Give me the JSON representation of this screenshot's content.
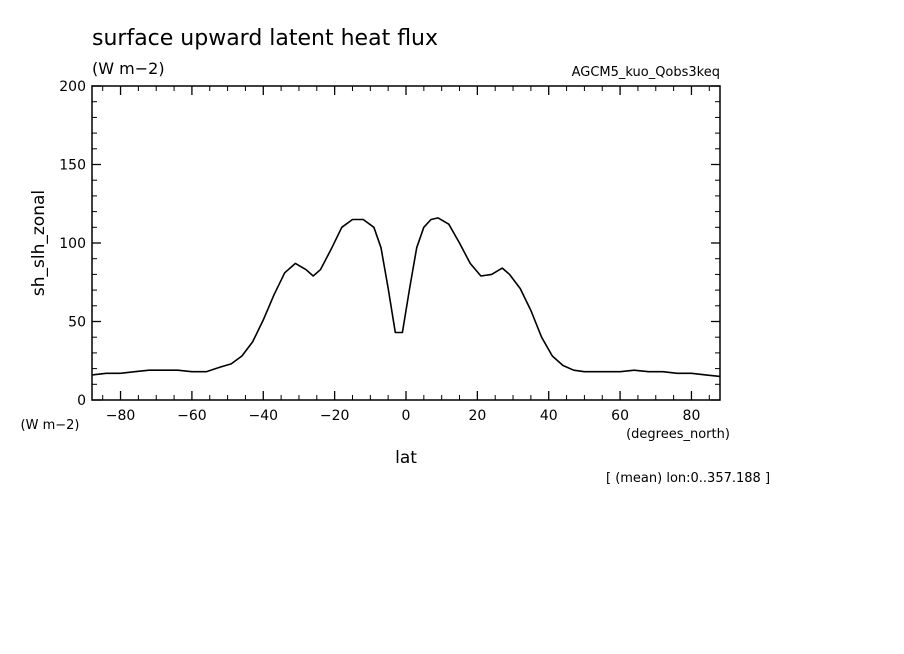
{
  "chart_data": {
    "type": "line",
    "title": "surface upward latent heat flux",
    "units": "(W m−2)",
    "experiment": "AGCM5_kuo_Qobs3keq",
    "ylabel": "sh_slh_zonal",
    "yunits": "(W m−2)",
    "xlabel": "lat",
    "xunits": "(degrees_north)",
    "footnote": "[ (mean) lon:0..357.188 ]",
    "xlim": [
      -88,
      88
    ],
    "ylim": [
      0,
      200
    ],
    "xticks": [
      -80,
      -60,
      -40,
      -20,
      0,
      20,
      40,
      60,
      80
    ],
    "xtick_labels": [
      "−80",
      "−60",
      "−40",
      "−20",
      "0",
      "20",
      "40",
      "60",
      "80"
    ],
    "yticks": [
      0,
      50,
      100,
      150,
      200
    ],
    "ytick_labels": [
      "0",
      "50",
      "100",
      "150",
      "200"
    ],
    "line_color": "#000000",
    "x": [
      -88,
      -84,
      -80,
      -76,
      -72,
      -68,
      -64,
      -60,
      -56,
      -52,
      -49,
      -46,
      -43,
      -40,
      -37,
      -34,
      -31,
      -28,
      -26,
      -24,
      -21,
      -18,
      -15,
      -12,
      -9,
      -7,
      -5,
      -3,
      -1,
      1,
      3,
      5,
      7,
      9,
      12,
      15,
      18,
      21,
      24,
      27,
      29,
      32,
      35,
      38,
      41,
      44,
      47,
      50,
      53,
      56,
      60,
      64,
      68,
      72,
      76,
      80,
      84,
      88
    ],
    "y": [
      16,
      17,
      17,
      18,
      19,
      19,
      19,
      18,
      18,
      21,
      23,
      28,
      37,
      51,
      67,
      81,
      87,
      83,
      79,
      83,
      96,
      110,
      115,
      115,
      110,
      97,
      71,
      43,
      43,
      71,
      97,
      110,
      115,
      116,
      112,
      100,
      87,
      79,
      80,
      84,
      80,
      71,
      57,
      40,
      28,
      22,
      19,
      18,
      18,
      18,
      18,
      19,
      18,
      18,
      17,
      17,
      16,
      15
    ]
  }
}
